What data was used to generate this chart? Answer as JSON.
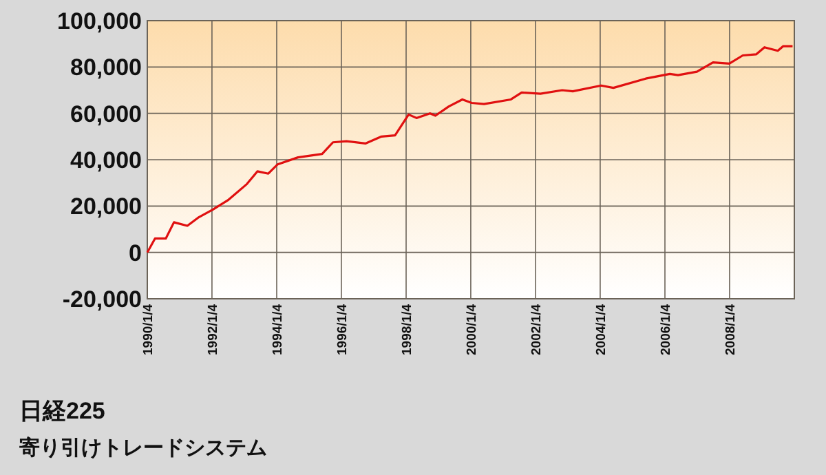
{
  "chart_data": {
    "type": "line",
    "title": "日経225",
    "subtitle": "寄り引けトレードシステム",
    "x": [
      "1990-01-04",
      "1990-04-01",
      "1990-08-01",
      "1990-11-01",
      "1991-04-01",
      "1991-08-01",
      "1992-01-15",
      "1992-07-01",
      "1993-02-01",
      "1993-06-01",
      "1993-10-01",
      "1994-01-15",
      "1994-09-01",
      "1995-06-01",
      "1995-10-01",
      "1996-03-01",
      "1996-10-01",
      "1997-04-01",
      "1997-09-01",
      "1998-02-01",
      "1998-05-01",
      "1998-10-01",
      "1998-12-01",
      "1999-05-01",
      "1999-10-01",
      "2000-01-15",
      "2000-06-01",
      "2001-04-01",
      "2001-08-01",
      "2002-03-01",
      "2002-11-01",
      "2003-03-01",
      "2004-01-15",
      "2004-06-01",
      "2005-06-01",
      "2006-03-01",
      "2006-06-01",
      "2007-01-01",
      "2007-07-01",
      "2008-01-01",
      "2008-06-01",
      "2008-11-01",
      "2009-02-01",
      "2009-07-01",
      "2009-09-01",
      "2009-12-15"
    ],
    "series": [
      {
        "color": "#e01010",
        "values": [
          0,
          6000,
          6000,
          13000,
          11500,
          15000,
          18500,
          22500,
          29500,
          35000,
          34000,
          38000,
          41000,
          42500,
          47500,
          48000,
          47000,
          50000,
          50500,
          59500,
          58000,
          60000,
          59000,
          63000,
          66000,
          64500,
          64000,
          66000,
          69000,
          68500,
          70000,
          69500,
          72000,
          71000,
          75000,
          77000,
          76500,
          78000,
          82000,
          81500,
          85000,
          85500,
          88500,
          87000,
          89000,
          89000
        ]
      }
    ],
    "xlim": [
      "1990-01-04",
      "2010-01-04"
    ],
    "xticks": [
      {
        "value": "1990-01-04",
        "label": "1990/1/4"
      },
      {
        "value": "1992-01-04",
        "label": "1992/1/4"
      },
      {
        "value": "1994-01-04",
        "label": "1994/1/4"
      },
      {
        "value": "1996-01-04",
        "label": "1996/1/4"
      },
      {
        "value": "1998-01-04",
        "label": "1998/1/4"
      },
      {
        "value": "2000-01-04",
        "label": "2000/1/4"
      },
      {
        "value": "2002-01-04",
        "label": "2002/1/4"
      },
      {
        "value": "2004-01-04",
        "label": "2004/1/4"
      },
      {
        "value": "2006-01-04",
        "label": "2006/1/4"
      },
      {
        "value": "2008-01-04",
        "label": "2008/1/4"
      }
    ],
    "ylim": [
      -20000,
      100000
    ],
    "yticks": [
      {
        "value": -20000,
        "label": "-20,000"
      },
      {
        "value": 0,
        "label": "0"
      },
      {
        "value": 20000,
        "label": "20,000"
      },
      {
        "value": 40000,
        "label": "40,000"
      },
      {
        "value": 60000,
        "label": "60,000"
      },
      {
        "value": 80000,
        "label": "80,000"
      },
      {
        "value": 100000,
        "label": "100,000"
      }
    ],
    "grid": true,
    "marker": "none",
    "line_style": "solid"
  }
}
